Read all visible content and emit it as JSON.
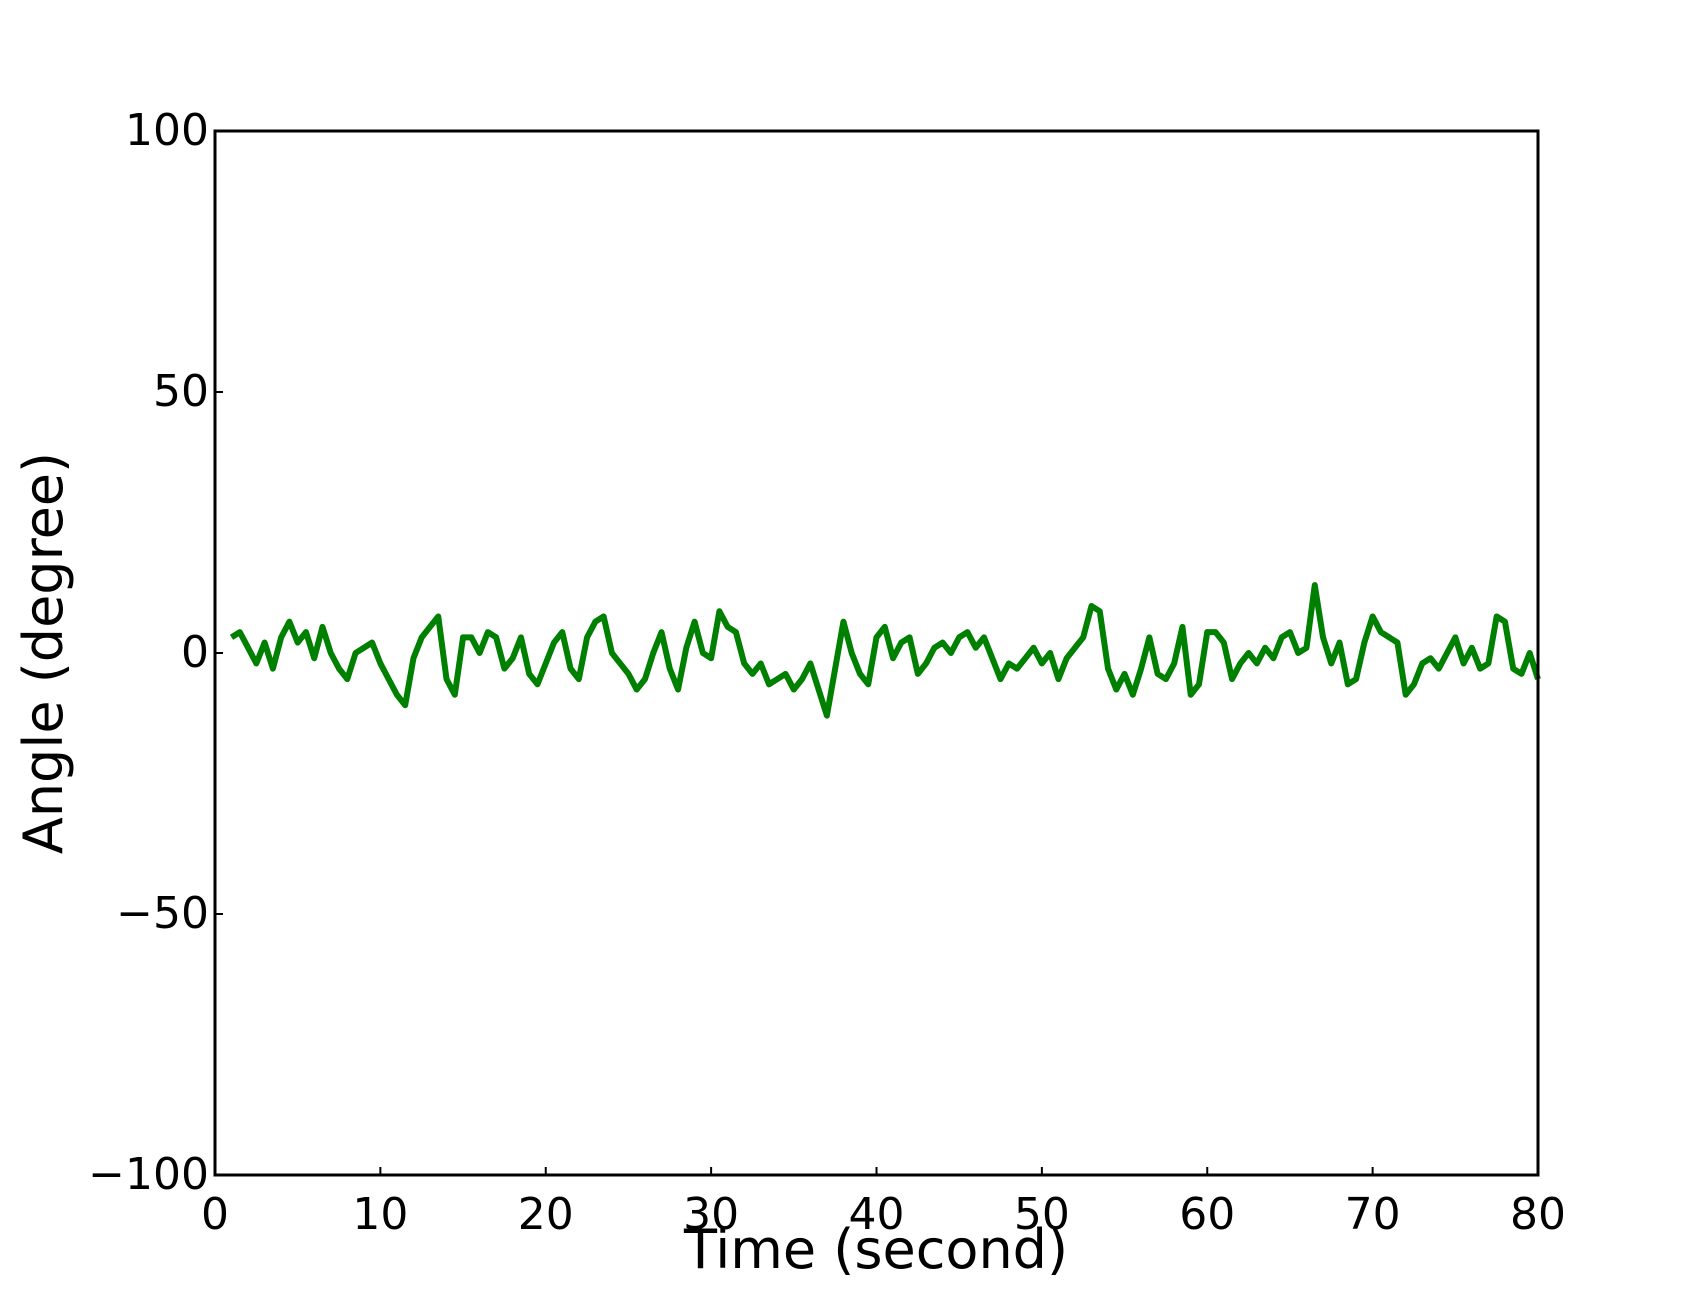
{
  "chart_data": {
    "type": "line",
    "xlabel": "Time (second)",
    "ylabel": "Angle (degree)",
    "x": [
      1,
      1.5,
      2,
      2.5,
      3,
      3.5,
      4,
      4.5,
      5,
      5.5,
      6,
      6.5,
      7,
      7.5,
      8,
      8.5,
      9,
      9.5,
      10,
      10.5,
      11,
      11.5,
      12,
      12.5,
      13,
      13.5,
      14,
      14.5,
      15,
      15.5,
      16,
      16.5,
      17,
      17.5,
      18,
      18.5,
      19,
      19.5,
      20,
      20.5,
      21,
      21.5,
      22,
      22.5,
      23,
      23.5,
      24,
      24.5,
      25,
      25.5,
      26,
      26.5,
      27,
      27.5,
      28,
      28.5,
      29,
      29.5,
      30,
      30.5,
      31,
      31.5,
      32,
      32.5,
      33,
      33.5,
      34,
      34.5,
      35,
      35.5,
      36,
      36.5,
      37,
      37.5,
      38,
      38.5,
      39,
      39.5,
      40,
      40.5,
      41,
      41.5,
      42,
      42.5,
      43,
      43.5,
      44,
      44.5,
      45,
      45.5,
      46,
      46.5,
      47,
      47.5,
      48,
      48.5,
      49,
      49.5,
      50,
      50.5,
      51,
      51.5,
      52,
      52.5,
      53,
      53.5,
      54,
      54.5,
      55,
      55.5,
      56,
      56.5,
      57,
      57.5,
      58,
      58.5,
      59,
      59.5,
      60,
      60.5,
      61,
      61.5,
      62,
      62.5,
      63,
      63.5,
      64,
      64.5,
      65,
      65.5,
      66,
      66.5,
      67,
      67.5,
      68,
      68.5,
      69,
      69.5,
      70,
      70.5,
      71,
      71.5,
      72,
      72.5,
      73,
      73.5,
      74,
      74.5,
      75,
      75.5,
      76,
      76.5,
      77,
      77.5,
      78,
      78.5,
      79,
      79.5,
      80
    ],
    "series": [
      {
        "color": "#008000",
        "values": [
          3,
          4,
          1,
          -2,
          2,
          -3,
          3,
          6,
          2,
          4,
          -1,
          5,
          0,
          -3,
          -5,
          0,
          1,
          2,
          -2,
          -5,
          -8,
          -10,
          -1,
          3,
          5,
          7,
          -5,
          -8,
          3,
          3,
          0,
          4,
          3,
          -3,
          -1,
          3,
          -4,
          -6,
          -2,
          2,
          4,
          -3,
          -5,
          3,
          6,
          7,
          0,
          -2,
          -4,
          -7,
          -5,
          0,
          4,
          -3,
          -7,
          1,
          6,
          0,
          -1,
          8,
          5,
          4,
          -2,
          -4,
          -2,
          -6,
          -5,
          -4,
          -7,
          -5,
          -2,
          -7,
          -12,
          -3,
          6,
          0,
          -4,
          -6,
          3,
          5,
          -1,
          2,
          3,
          -4,
          -2,
          1,
          2,
          0,
          3,
          4,
          1,
          3,
          -1,
          -5,
          -2,
          -3,
          -1,
          1,
          -2,
          0,
          -5,
          -1,
          1,
          3,
          9,
          8,
          -3,
          -7,
          -4,
          -8,
          -3,
          3,
          -4,
          -5,
          -2,
          5,
          -8,
          -6,
          4,
          4,
          2,
          -5,
          -2,
          0,
          -2,
          1,
          -1,
          3,
          4,
          0,
          1,
          13,
          3,
          -2,
          2,
          -6,
          -5,
          2,
          7,
          4,
          3,
          2,
          -8,
          -6,
          -2,
          -1,
          -3,
          0,
          3,
          -2,
          1,
          -3,
          -2,
          7,
          6,
          -3,
          -4,
          0,
          -5
        ]
      }
    ],
    "xlim": [
      0,
      80
    ],
    "xticks": [
      0,
      10,
      20,
      30,
      40,
      50,
      60,
      70,
      80
    ],
    "ylim": [
      -100,
      100
    ],
    "yticks": [
      {
        "value": -100,
        "label": "−100"
      },
      {
        "value": -50,
        "label": "−50"
      },
      0,
      50,
      100
    ]
  }
}
